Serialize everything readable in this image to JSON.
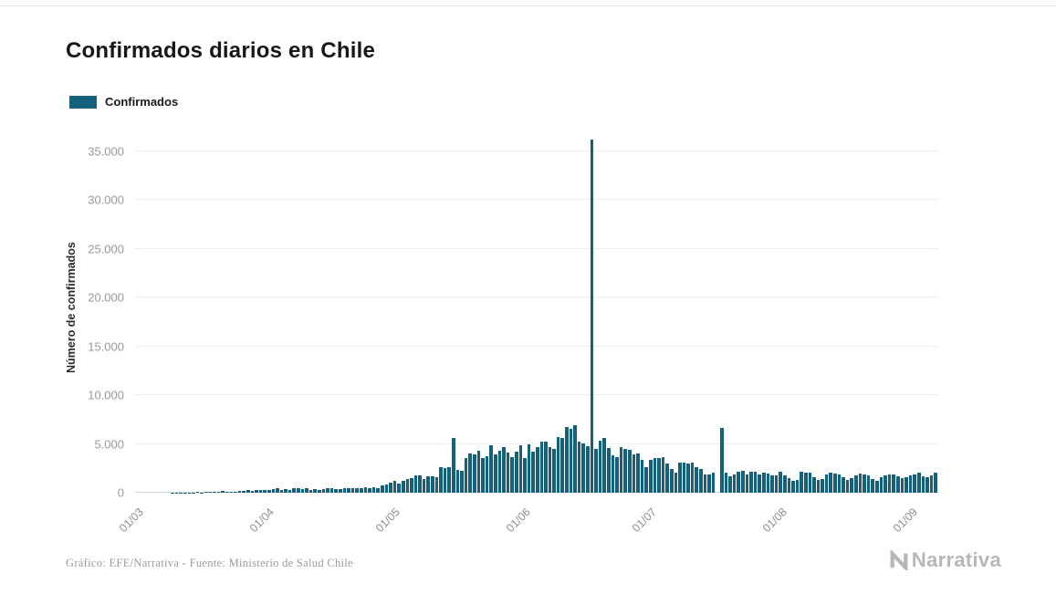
{
  "header": {
    "title": "Confirmados diarios en Chile"
  },
  "legend": {
    "label": "Confirmados"
  },
  "footer": {
    "credit": "Gráfico: EFE/Narrativa - Fuente: Ministerio de Salud Chile",
    "brand": "Narrativa"
  },
  "chart_data": {
    "type": "bar",
    "title": "Confirmados diarios en Chile",
    "series_name": "Confirmados",
    "ylabel": "Número de confirmados",
    "xlabel": "",
    "bar_color": "#15607a",
    "grid": true,
    "legend_position": "top-left",
    "ylim": [
      0,
      36690
    ],
    "yticks": [
      {
        "value": 0,
        "label": "0"
      },
      {
        "value": 5000,
        "label": "5.000"
      },
      {
        "value": 10000,
        "label": "10.000"
      },
      {
        "value": 15000,
        "label": "15.000"
      },
      {
        "value": 20000,
        "label": "20.000"
      },
      {
        "value": 25000,
        "label": "25.000"
      },
      {
        "value": 30000,
        "label": "30.000"
      },
      {
        "value": 35000,
        "label": "35.000"
      }
    ],
    "xticks": [
      {
        "day_index": 0,
        "label": "01/03"
      },
      {
        "day_index": 31,
        "label": "01/04"
      },
      {
        "day_index": 61,
        "label": "01/05"
      },
      {
        "day_index": 92,
        "label": "01/06"
      },
      {
        "day_index": 122,
        "label": "01/07"
      },
      {
        "day_index": 153,
        "label": "01/08"
      },
      {
        "day_index": 184,
        "label": "01/09"
      }
    ],
    "num_days": 192,
    "values": [
      0,
      0,
      3,
      1,
      1,
      2,
      3,
      3,
      10,
      8,
      12,
      17,
      32,
      16,
      81,
      44,
      59,
      65,
      92,
      103,
      164,
      114,
      88,
      132,
      176,
      220,
      299,
      230,
      310,
      304,
      293,
      312,
      373,
      424,
      310,
      344,
      301,
      430,
      426,
      401,
      447,
      312,
      392,
      325,
      356,
      445,
      478,
      358,
      419,
      456,
      473,
      464,
      482,
      516,
      552,
      494,
      552,
      482,
      764,
      888,
      985,
      1228,
      980,
      1197,
      1373,
      1533,
      1802,
      1758,
      1427,
      1647,
      1658,
      1604,
      2660,
      2502,
      2659,
      5648,
      2353,
      2278,
      3520,
      4038,
      3964,
      4276,
      3536,
      3709,
      4895,
      3964,
      4328,
      4654,
      4120,
      3695,
      4220,
      4830,
      3527,
      4942,
      4207,
      4664,
      5246,
      5275,
      4696,
      4526,
      5737,
      5596,
      6754,
      6509,
      6938,
      5274,
      5013,
      4757,
      36179,
      4475,
      5355,
      5607,
      4608,
      3804,
      3649,
      4648,
      4475,
      4406,
      3913,
      4017,
      3394,
      2650,
      3394,
      3582,
      3548,
      3685,
      3025,
      2462,
      2064,
      3133,
      3058,
      3012,
      3129,
      2616,
      2475,
      1836,
      1894,
      2099,
      0,
      6687,
      2082,
      1706,
      1906,
      2152,
      2287,
      1916,
      2198,
      2133,
      1877,
      2045,
      1937,
      1823,
      1822,
      2198,
      1762,
      1469,
      1183,
      1351,
      2131,
      2088,
      2033,
      1572,
      1272,
      1419,
      1914,
      2072,
      1993,
      1876,
      1603,
      1353,
      1497,
      1812,
      2005,
      1890,
      1764,
      1408,
      1233,
      1611,
      1775,
      1852,
      1906,
      1718,
      1458,
      1637,
      1759,
      1857,
      2077,
      1727,
      1610,
      1805,
      2088
    ]
  }
}
